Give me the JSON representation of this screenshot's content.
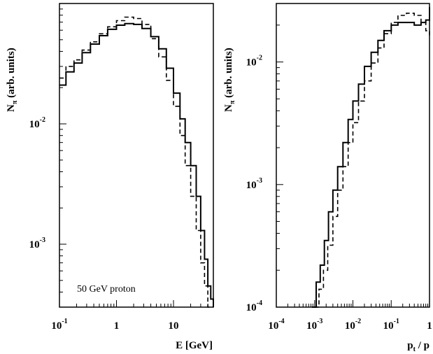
{
  "chart_data": [
    {
      "type": "line",
      "xlabel": "E [GeV]",
      "ylabel_main": "N",
      "ylabel_sub": "π",
      "ylabel_rest": " (arb. units)",
      "x_scale": "log",
      "y_scale": "log",
      "xlim": [
        0.1,
        50
      ],
      "ylim": [
        0.0003,
        0.1
      ],
      "x_ticks": [
        {
          "value": 0.1,
          "base": "10",
          "exp": "-1"
        },
        {
          "value": 1,
          "base": "1",
          "exp": ""
        },
        {
          "value": 10,
          "base": "10",
          "exp": ""
        }
      ],
      "y_ticks": [
        {
          "value": 0.01,
          "base": "10",
          "exp": "-2"
        },
        {
          "value": 0.001,
          "base": "10",
          "exp": "-3"
        }
      ],
      "annotation": "50 GeV proton",
      "series": [
        {
          "style": "solid",
          "x": [
            0.1,
            0.13,
            0.18,
            0.25,
            0.35,
            0.5,
            0.7,
            1.0,
            1.4,
            2.0,
            2.8,
            4.0,
            5.5,
            7.5,
            10,
            13,
            16,
            20,
            25,
            30,
            35,
            40,
            45,
            50
          ],
          "y": [
            0.021,
            0.027,
            0.032,
            0.039,
            0.046,
            0.054,
            0.061,
            0.066,
            0.068,
            0.067,
            0.062,
            0.053,
            0.042,
            0.029,
            0.018,
            0.011,
            0.007,
            0.0045,
            0.0025,
            0.0013,
            0.00075,
            0.00045,
            0.00035,
            0.0003
          ]
        },
        {
          "style": "dashed",
          "x": [
            0.1,
            0.13,
            0.18,
            0.25,
            0.35,
            0.5,
            0.7,
            1.0,
            1.4,
            2.0,
            2.8,
            4.0,
            5.5,
            7.5,
            10,
            13,
            16,
            20,
            25,
            30,
            35,
            40
          ],
          "y": [
            0.024,
            0.03,
            0.034,
            0.041,
            0.048,
            0.056,
            0.064,
            0.072,
            0.077,
            0.075,
            0.067,
            0.051,
            0.036,
            0.023,
            0.014,
            0.008,
            0.0045,
            0.0025,
            0.0013,
            0.0007,
            0.00045,
            0.0003
          ]
        }
      ]
    },
    {
      "type": "line",
      "xlabel_main": "p",
      "xlabel_sub": "t",
      "xlabel_rest": " / p",
      "ylabel_main": "N",
      "ylabel_sub": "π",
      "ylabel_rest": " (arb. units)",
      "x_scale": "log",
      "y_scale": "log",
      "xlim": [
        0.0001,
        1
      ],
      "ylim": [
        0.0001,
        0.03
      ],
      "x_ticks": [
        {
          "value": 0.0001,
          "base": "10",
          "exp": "-4"
        },
        {
          "value": 0.001,
          "base": "10",
          "exp": "-3"
        },
        {
          "value": 0.01,
          "base": "10",
          "exp": "-2"
        },
        {
          "value": 0.1,
          "base": "10",
          "exp": "-1"
        },
        {
          "value": 1,
          "base": "1",
          "exp": ""
        }
      ],
      "y_ticks": [
        {
          "value": 0.0001,
          "base": "10",
          "exp": "-4"
        },
        {
          "value": 0.001,
          "base": "10",
          "exp": "-3"
        },
        {
          "value": 0.01,
          "base": "10",
          "exp": "-2"
        }
      ],
      "series": [
        {
          "style": "solid",
          "x": [
            0.00085,
            0.0011,
            0.0014,
            0.0018,
            0.0023,
            0.003,
            0.004,
            0.0055,
            0.0075,
            0.01,
            0.014,
            0.02,
            0.03,
            0.045,
            0.065,
            0.1,
            0.15,
            0.25,
            0.4,
            0.6,
            0.8,
            1.0
          ],
          "y": [
            0.0001,
            0.00016,
            0.00022,
            0.00035,
            0.0006,
            0.0009,
            0.0014,
            0.0022,
            0.0034,
            0.0048,
            0.0066,
            0.0092,
            0.012,
            0.015,
            0.018,
            0.02,
            0.021,
            0.021,
            0.02,
            0.021,
            0.022,
            0.028
          ]
        },
        {
          "style": "dashed",
          "x": [
            0.001,
            0.0013,
            0.0017,
            0.0022,
            0.003,
            0.004,
            0.0055,
            0.0075,
            0.01,
            0.014,
            0.02,
            0.03,
            0.045,
            0.065,
            0.1,
            0.15,
            0.25,
            0.4,
            0.6,
            0.8,
            1.0
          ],
          "y": [
            0.0001,
            0.00014,
            0.0002,
            0.00032,
            0.00055,
            0.0009,
            0.0014,
            0.0022,
            0.0032,
            0.0048,
            0.007,
            0.0098,
            0.013,
            0.017,
            0.021,
            0.024,
            0.025,
            0.024,
            0.021,
            0.018,
            0.016
          ]
        }
      ]
    }
  ]
}
